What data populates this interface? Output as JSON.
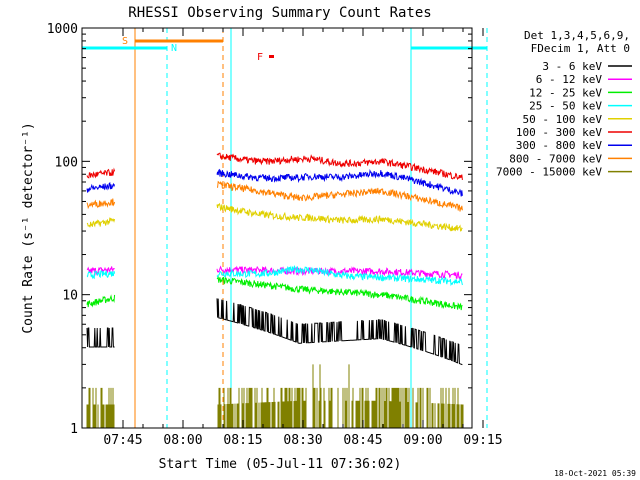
{
  "chart_data": {
    "type": "line",
    "title": "RHESSI Observing Summary Count Rates",
    "xlabel": "Start Time (05-Jul-11 07:36:02)",
    "ylabel": "Count Rate (s⁻¹ detector⁻¹)",
    "y_scale": "log",
    "ylim": [
      1,
      1000
    ],
    "xlim_minutes": [
      0,
      100
    ],
    "x_ticks": [
      {
        "label": "07:45",
        "min": 9
      },
      {
        "label": "08:00",
        "min": 24
      },
      {
        "label": "08:15",
        "min": 39
      },
      {
        "label": "08:30",
        "min": 54
      },
      {
        "label": "08:45",
        "min": 69
      },
      {
        "label": "09:00",
        "min": 84
      },
      {
        "label": "09:15",
        "min": 99
      }
    ],
    "y_ticks": [
      {
        "label": "1",
        "v": 1
      },
      {
        "label": "10",
        "v": 10
      },
      {
        "label": "100",
        "v": 100
      },
      {
        "label": "1000",
        "v": 1000
      }
    ],
    "legend_header": [
      "Det 1,3,4,5,6,9,",
      "FDecim 1, Att 0"
    ],
    "series": [
      {
        "name": "3 - 6 keV",
        "color": "#000000",
        "segA": [
          4.5,
          4.5
        ],
        "segB": [
          7.5,
          4.8,
          5.2,
          3.3
        ]
      },
      {
        "name": "6 - 12 keV",
        "color": "#ff00ff",
        "segA": [
          15,
          15.5
        ],
        "segB": [
          15.5,
          15,
          15,
          14
        ]
      },
      {
        "name": "12 - 25 keV",
        "color": "#00ee00",
        "segA": [
          8.5,
          9.5
        ],
        "segB": [
          13,
          11,
          10,
          8
        ]
      },
      {
        "name": "25 - 50 keV",
        "color": "#00ffff",
        "segA": [
          14,
          14.5
        ],
        "segB": [
          14.5,
          14,
          13.5,
          12.5
        ]
      },
      {
        "name": "50 - 100 keV",
        "color": "#e0d000",
        "segA": [
          33,
          36
        ],
        "segB": [
          46,
          34,
          37,
          31
        ]
      },
      {
        "name": "100 - 300 keV",
        "color": "#ee0000",
        "segA": [
          78,
          83
        ],
        "segB": [
          110,
          88,
          100,
          75
        ]
      },
      {
        "name": "300 - 800 keV",
        "color": "#0000ee",
        "segA": [
          62,
          66
        ],
        "segB": [
          82,
          68,
          82,
          57
        ]
      },
      {
        "name": "800 - 7000 keV",
        "color": "#ff8000",
        "segA": [
          47,
          50
        ],
        "segB": [
          67,
          53,
          60,
          44
        ]
      },
      {
        "name": "7000 - 15000 keV",
        "color": "#808000",
        "segA": [
          1.5,
          1.5
        ],
        "segB": [
          1.5,
          1.6,
          1.6,
          1.5
        ]
      }
    ],
    "gaps": [
      [
        12,
        20
      ],
      [
        20,
        27.5
      ]
    ],
    "markers": {
      "saa": {
        "label": "S",
        "color": "#ff8000",
        "start_min": 12,
        "end_min": 34
      },
      "night": {
        "label": "N",
        "color": "#00ffff",
        "intervals": [
          [
            0,
            20
          ],
          [
            81,
            100
          ]
        ]
      },
      "flare": {
        "label": "F",
        "color": "#ee0000",
        "at_min": 44
      }
    },
    "timestamp": "18-Oct-2021 05:39"
  }
}
